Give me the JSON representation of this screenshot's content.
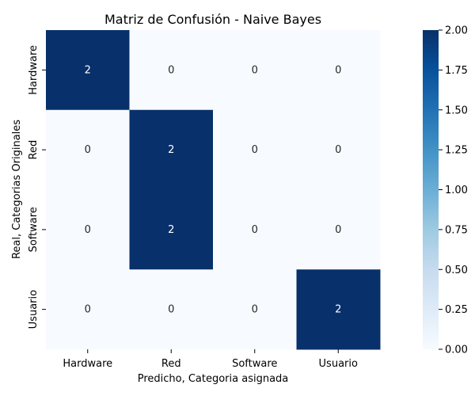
{
  "chart_data": {
    "type": "heatmap",
    "title": "Matriz de Confusión - Naive Bayes",
    "xlabel": "Predicho, Categoria asignada",
    "ylabel": "Real, Categorias Originales",
    "x_categories": [
      "Hardware",
      "Red",
      "Software",
      "Usuario"
    ],
    "y_categories": [
      "Hardware",
      "Red",
      "Software",
      "Usuario"
    ],
    "values": [
      [
        2,
        0,
        0,
        0
      ],
      [
        0,
        2,
        0,
        0
      ],
      [
        0,
        2,
        0,
        0
      ],
      [
        0,
        0,
        0,
        2
      ]
    ],
    "value_range": [
      0,
      2
    ],
    "colorbar_ticks": [
      "0.00",
      "0.25",
      "0.50",
      "0.75",
      "1.00",
      "1.25",
      "1.50",
      "1.75",
      "2.00"
    ],
    "colormap": [
      "#f7fbff",
      "#deebf7",
      "#c6dbef",
      "#9ecae1",
      "#6baed6",
      "#4292c6",
      "#2171b5",
      "#08519c",
      "#08306b"
    ]
  }
}
